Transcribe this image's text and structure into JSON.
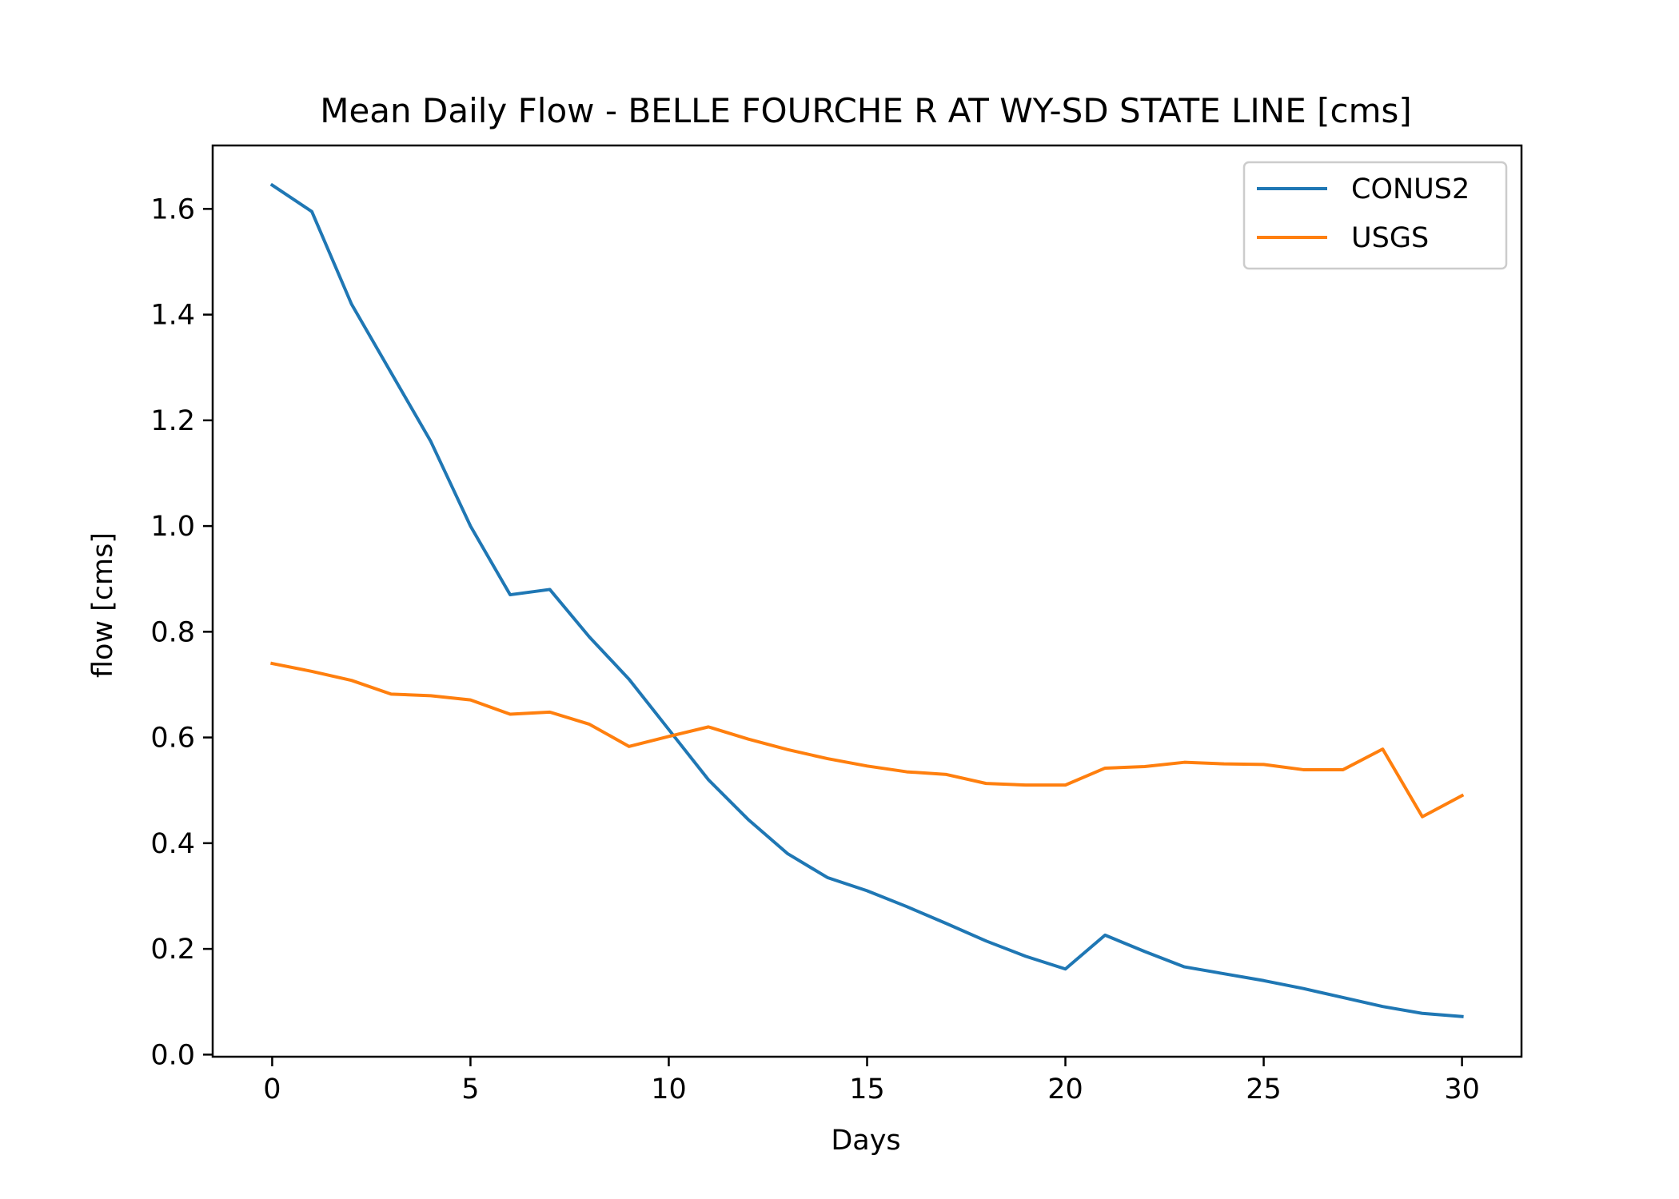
{
  "chart_data": {
    "type": "line",
    "title": "Mean Daily Flow - BELLE FOURCHE R AT WY-SD STATE LINE [cms]",
    "xlabel": "Days",
    "ylabel": "flow [cms]",
    "xlim": [
      -1.5,
      31.5
    ],
    "ylim": [
      -0.004,
      1.72
    ],
    "xticks": [
      0,
      5,
      10,
      15,
      20,
      25,
      30
    ],
    "xtick_labels": [
      "0",
      "5",
      "10",
      "15",
      "20",
      "25",
      "30"
    ],
    "yticks": [
      0.0,
      0.2,
      0.4,
      0.6,
      0.8,
      1.0,
      1.2,
      1.4,
      1.6
    ],
    "ytick_labels": [
      "0.0",
      "0.2",
      "0.4",
      "0.6",
      "0.8",
      "1.0",
      "1.2",
      "1.4",
      "1.6"
    ],
    "grid": false,
    "legend_position": "top-right",
    "x": [
      0,
      1,
      2,
      3,
      4,
      5,
      6,
      7,
      8,
      9,
      10,
      11,
      12,
      13,
      14,
      15,
      16,
      17,
      18,
      19,
      20,
      21,
      22,
      23,
      24,
      25,
      26,
      27,
      28,
      29,
      30
    ],
    "series": [
      {
        "name": "CONUS2",
        "color": "#1f77b4",
        "values": [
          1.645,
          1.595,
          1.42,
          1.29,
          1.16,
          1.0,
          0.87,
          0.88,
          0.79,
          0.71,
          0.615,
          0.52,
          0.445,
          0.38,
          0.335,
          0.31,
          0.28,
          0.248,
          0.215,
          0.186,
          0.162,
          0.226,
          0.195,
          0.166,
          0.153,
          0.14,
          0.125,
          0.108,
          0.091,
          0.078,
          0.072
        ]
      },
      {
        "name": "USGS",
        "color": "#ff7f0e",
        "values": [
          0.74,
          0.725,
          0.708,
          0.682,
          0.679,
          0.671,
          0.644,
          0.648,
          0.625,
          0.583,
          0.602,
          0.62,
          0.597,
          0.577,
          0.56,
          0.546,
          0.535,
          0.53,
          0.513,
          0.51,
          0.51,
          0.542,
          0.545,
          0.553,
          0.55,
          0.549,
          0.539,
          0.539,
          0.578,
          0.45,
          0.49
        ]
      }
    ]
  }
}
